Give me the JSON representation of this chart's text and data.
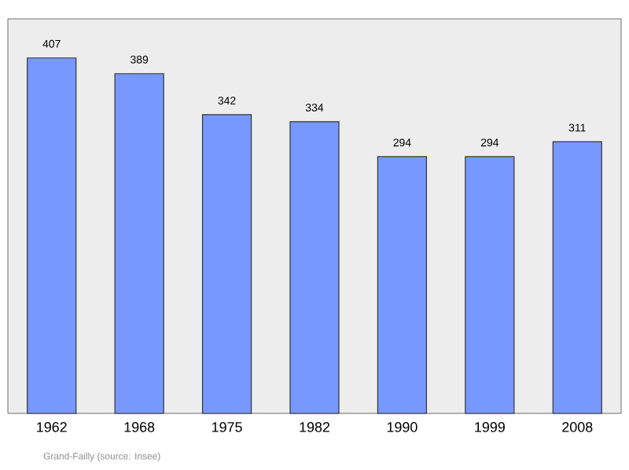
{
  "chart_data": {
    "type": "bar",
    "categories": [
      "1962",
      "1968",
      "1975",
      "1982",
      "1990",
      "1999",
      "2008"
    ],
    "values": [
      407,
      389,
      342,
      334,
      294,
      294,
      311
    ],
    "color": "#7799ff",
    "data_labels": true,
    "grid": false,
    "annotations": [
      "Grand-Failly    (source: Insee)"
    ]
  }
}
